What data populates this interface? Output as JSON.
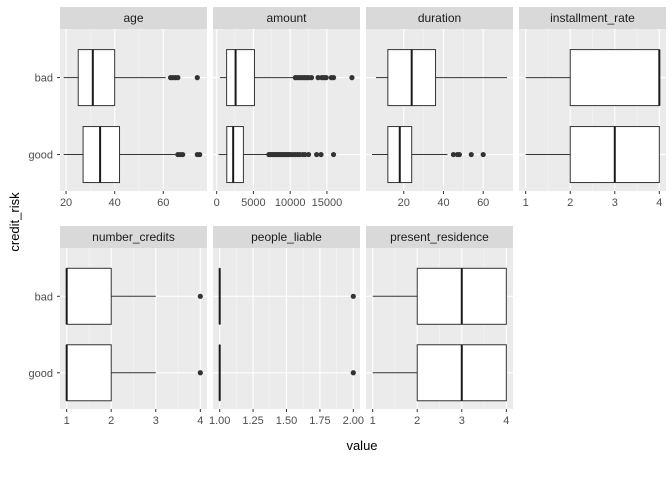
{
  "chart_data": {
    "type": "boxplot",
    "xlabel": "value",
    "ylabel": "credit_risk",
    "categories": [
      "bad",
      "good"
    ],
    "panel_bg": "#ebebeb",
    "strip_bg": "#d9d9d9",
    "grid_major": "#ffffff",
    "outlier_color": "#333333",
    "panels": [
      {
        "name": "age",
        "xlim": [
          17.5,
          78
        ],
        "ticks": [
          {
            "value": 20,
            "label": "20"
          },
          {
            "value": 40,
            "label": "40"
          },
          {
            "value": 60,
            "label": "60"
          }
        ],
        "boxes": [
          {
            "group": "bad",
            "whisker_low": 19,
            "q1": 25,
            "median": 31,
            "q3": 40,
            "whisker_high": 61,
            "outliers": [
              63,
              64,
              65,
              66,
              74
            ]
          },
          {
            "group": "good",
            "whisker_low": 19,
            "q1": 27,
            "median": 34,
            "q3": 42,
            "whisker_high": 65,
            "outliers": [
              66,
              67,
              68,
              74,
              75
            ]
          }
        ]
      },
      {
        "name": "amount",
        "xlim": [
          -500,
          19500
        ],
        "ticks": [
          {
            "value": 0,
            "label": "0"
          },
          {
            "value": 5000,
            "label": "5000"
          },
          {
            "value": 10000,
            "label": "10000"
          },
          {
            "value": 15000,
            "label": "15000"
          }
        ],
        "boxes": [
          {
            "group": "bad",
            "whisker_low": 433,
            "q1": 1352,
            "median": 2574,
            "q3": 5142,
            "whisker_high": 10500,
            "outliers": [
              10700,
              11000,
              11300,
              11600,
              11900,
              12200,
              12500,
              12900,
              13800,
              14300,
              14600,
              14900,
              15600,
              15900,
              18400
            ]
          },
          {
            "group": "good",
            "whisker_low": 250,
            "q1": 1375,
            "median": 2244,
            "q3": 3635,
            "whisker_high": 7000,
            "outliers": [
              7100,
              7300,
              7500,
              7700,
              7900,
              8100,
              8300,
              8500,
              8700,
              8900,
              9100,
              9300,
              9500,
              9700,
              9900,
              10100,
              10400,
              10700,
              11000,
              11300,
              11700,
              12000,
              12500,
              13600,
              14200,
              15900
            ]
          }
        ]
      },
      {
        "name": "duration",
        "xlim": [
          1,
          75
        ],
        "ticks": [
          {
            "value": 20,
            "label": "20"
          },
          {
            "value": 40,
            "label": "40"
          },
          {
            "value": 60,
            "label": "60"
          }
        ],
        "boxes": [
          {
            "group": "bad",
            "whisker_low": 6,
            "q1": 12,
            "median": 24,
            "q3": 36,
            "whisker_high": 72,
            "outliers": []
          },
          {
            "group": "good",
            "whisker_low": 4,
            "q1": 12,
            "median": 18,
            "q3": 24,
            "whisker_high": 42,
            "outliers": [
              45,
              47,
              48,
              54,
              60
            ]
          }
        ]
      },
      {
        "name": "installment_rate",
        "xlim": [
          0.85,
          4.15
        ],
        "ticks": [
          {
            "value": 1,
            "label": "1"
          },
          {
            "value": 2,
            "label": "2"
          },
          {
            "value": 3,
            "label": "3"
          },
          {
            "value": 4,
            "label": "4"
          }
        ],
        "boxes": [
          {
            "group": "bad",
            "whisker_low": 1,
            "q1": 2,
            "median": 4,
            "q3": 4,
            "whisker_high": 4,
            "outliers": []
          },
          {
            "group": "good",
            "whisker_low": 1,
            "q1": 2,
            "median": 3,
            "q3": 4,
            "whisker_high": 4,
            "outliers": []
          }
        ]
      },
      {
        "name": "number_credits",
        "xlim": [
          0.85,
          4.15
        ],
        "ticks": [
          {
            "value": 1,
            "label": "1"
          },
          {
            "value": 2,
            "label": "2"
          },
          {
            "value": 3,
            "label": "3"
          },
          {
            "value": 4,
            "label": "4"
          }
        ],
        "boxes": [
          {
            "group": "bad",
            "whisker_low": 1,
            "q1": 1,
            "median": 1,
            "q3": 2,
            "whisker_high": 3,
            "outliers": [
              4
            ]
          },
          {
            "group": "good",
            "whisker_low": 1,
            "q1": 1,
            "median": 1,
            "q3": 2,
            "whisker_high": 3,
            "outliers": [
              4
            ]
          }
        ]
      },
      {
        "name": "people_liable",
        "xlim": [
          0.95,
          2.05
        ],
        "ticks": [
          {
            "value": 1.0,
            "label": "1.00"
          },
          {
            "value": 1.25,
            "label": "1.25"
          },
          {
            "value": 1.5,
            "label": "1.50"
          },
          {
            "value": 1.75,
            "label": "1.75"
          },
          {
            "value": 2.0,
            "label": "2.00"
          }
        ],
        "boxes": [
          {
            "group": "bad",
            "whisker_low": 1,
            "q1": 1,
            "median": 1,
            "q3": 1,
            "whisker_high": 1,
            "outliers": [
              2
            ]
          },
          {
            "group": "good",
            "whisker_low": 1,
            "q1": 1,
            "median": 1,
            "q3": 1,
            "whisker_high": 1,
            "outliers": [
              2
            ]
          }
        ]
      },
      {
        "name": "present_residence",
        "xlim": [
          0.85,
          4.15
        ],
        "ticks": [
          {
            "value": 1,
            "label": "1"
          },
          {
            "value": 2,
            "label": "2"
          },
          {
            "value": 3,
            "label": "3"
          },
          {
            "value": 4,
            "label": "4"
          }
        ],
        "boxes": [
          {
            "group": "bad",
            "whisker_low": 1,
            "q1": 2,
            "median": 3,
            "q3": 4,
            "whisker_high": 4,
            "outliers": []
          },
          {
            "group": "good",
            "whisker_low": 1,
            "q1": 2,
            "median": 3,
            "q3": 4,
            "whisker_high": 4,
            "outliers": []
          }
        ]
      }
    ]
  }
}
